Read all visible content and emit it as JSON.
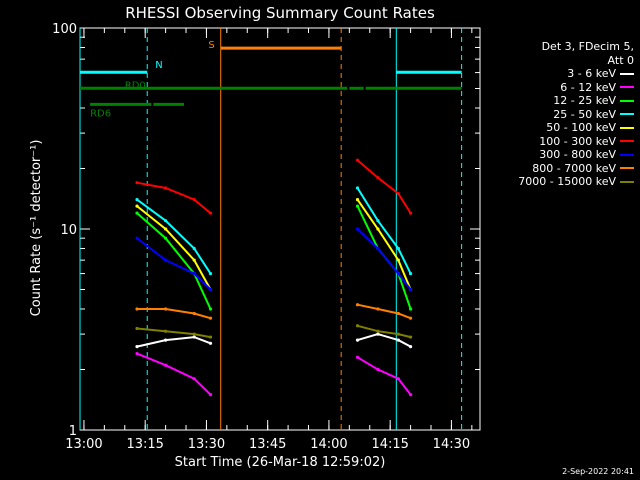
{
  "chart_data": {
    "type": "line",
    "title": "RHESSI Observing Summary Count Rates",
    "xlabel": "Start Time (26-Mar-18 12:59:02)",
    "ylabel": "Count Rate (s⁻¹ detector⁻¹)",
    "y_scale": "log",
    "ylim": [
      1,
      100
    ],
    "xlim": [
      "12:59:02",
      "14:37:00"
    ],
    "y_ticks": [
      "1",
      "10",
      "100"
    ],
    "x_ticks": [
      "13:00",
      "13:15",
      "13:30",
      "13:45",
      "14:00",
      "14:15",
      "14:30"
    ],
    "legend_title": [
      "Det 3, FDecim 5,",
      "Att 0"
    ],
    "legend_position": "right",
    "series": [
      {
        "name": "3 - 6 keV",
        "color": "#ffffff",
        "segments": [
          [
            [
              "13:13",
              2.6
            ],
            [
              "13:20",
              2.8
            ],
            [
              "13:27",
              2.9
            ],
            [
              "13:31",
              2.7
            ]
          ],
          [
            [
              "14:07",
              2.8
            ],
            [
              "14:12",
              3.0
            ],
            [
              "14:17",
              2.8
            ],
            [
              "14:20",
              2.6
            ]
          ]
        ]
      },
      {
        "name": "6 - 12 keV",
        "color": "#ff00ff",
        "segments": [
          [
            [
              "13:13",
              2.4
            ],
            [
              "13:20",
              2.1
            ],
            [
              "13:27",
              1.8
            ],
            [
              "13:31",
              1.5
            ]
          ],
          [
            [
              "14:07",
              2.3
            ],
            [
              "14:12",
              2.0
            ],
            [
              "14:17",
              1.8
            ],
            [
              "14:20",
              1.5
            ]
          ]
        ]
      },
      {
        "name": "12 - 25 keV",
        "color": "#00ff00",
        "segments": [
          [
            [
              "13:13",
              12
            ],
            [
              "13:20",
              9
            ],
            [
              "13:27",
              6
            ],
            [
              "13:31",
              4
            ]
          ],
          [
            [
              "14:07",
              13
            ],
            [
              "14:12",
              8
            ],
            [
              "14:17",
              6
            ],
            [
              "14:20",
              4
            ]
          ]
        ]
      },
      {
        "name": "25 - 50 keV",
        "color": "#00ffff",
        "segments": [
          [
            [
              "13:13",
              14
            ],
            [
              "13:20",
              11
            ],
            [
              "13:27",
              8
            ],
            [
              "13:31",
              6
            ]
          ],
          [
            [
              "14:07",
              16
            ],
            [
              "14:12",
              11
            ],
            [
              "14:17",
              8
            ],
            [
              "14:20",
              6
            ]
          ]
        ]
      },
      {
        "name": "50 - 100 keV",
        "color": "#ffff00",
        "segments": [
          [
            [
              "13:13",
              13
            ],
            [
              "13:20",
              10
            ],
            [
              "13:27",
              7
            ],
            [
              "13:31",
              5
            ]
          ],
          [
            [
              "14:07",
              14
            ],
            [
              "14:12",
              10
            ],
            [
              "14:17",
              7
            ],
            [
              "14:20",
              5
            ]
          ]
        ]
      },
      {
        "name": "100 - 300 keV",
        "color": "#ff0000",
        "segments": [
          [
            [
              "13:13",
              17
            ],
            [
              "13:20",
              16
            ],
            [
              "13:27",
              14
            ],
            [
              "13:31",
              12
            ]
          ],
          [
            [
              "14:07",
              22
            ],
            [
              "14:12",
              18
            ],
            [
              "14:17",
              15
            ],
            [
              "14:20",
              12
            ]
          ]
        ]
      },
      {
        "name": "300 - 800 keV",
        "color": "#0000ff",
        "segments": [
          [
            [
              "13:13",
              9
            ],
            [
              "13:20",
              7
            ],
            [
              "13:27",
              6
            ],
            [
              "13:31",
              5
            ]
          ],
          [
            [
              "14:07",
              10
            ],
            [
              "14:12",
              8
            ],
            [
              "14:17",
              6
            ],
            [
              "14:20",
              5
            ]
          ]
        ]
      },
      {
        "name": "800 - 7000 keV",
        "color": "#ff8000",
        "segments": [
          [
            [
              "13:13",
              4.0
            ],
            [
              "13:20",
              4.0
            ],
            [
              "13:27",
              3.8
            ],
            [
              "13:31",
              3.6
            ]
          ],
          [
            [
              "14:07",
              4.2
            ],
            [
              "14:12",
              4.0
            ],
            [
              "14:17",
              3.8
            ],
            [
              "14:20",
              3.6
            ]
          ]
        ]
      },
      {
        "name": "7000 - 15000 keV",
        "color": "#808000",
        "segments": [
          [
            [
              "13:13",
              3.2
            ],
            [
              "13:20",
              3.1
            ],
            [
              "13:27",
              3.0
            ],
            [
              "13:31",
              2.9
            ]
          ],
          [
            [
              "14:07",
              3.3
            ],
            [
              "14:12",
              3.1
            ],
            [
              "14:17",
              3.0
            ],
            [
              "14:20",
              2.9
            ]
          ]
        ]
      }
    ],
    "annotations": [
      {
        "label": "N",
        "color": "#00ffff",
        "style": "solid",
        "level": 0.9,
        "ranges": [
          [
            "12:59:02",
            "13:15:30"
          ],
          [
            "14:16:30",
            "14:32:30"
          ]
        ]
      },
      {
        "label": "S",
        "color": "#ff8000",
        "style": "solid",
        "level": 0.96,
        "ranges": [
          [
            "13:33:30",
            "14:03:00"
          ]
        ]
      },
      {
        "label": "RD0",
        "color": "#008000",
        "style": "solid",
        "level": 0.86,
        "ranges": [
          [
            "12:59:02",
            "14:04:30"
          ],
          [
            "14:05:00",
            "14:08:30"
          ],
          [
            "14:09:00",
            "14:32:30"
          ]
        ]
      },
      {
        "label": "RD6",
        "color": "#008000",
        "style": "solid",
        "level": 0.82,
        "ranges": [
          [
            "13:01:30",
            "13:16:30"
          ],
          [
            "13:17:00",
            "13:24:30"
          ]
        ]
      }
    ],
    "vertical_lines": [
      {
        "time": "12:59:02",
        "color": "#00ffff",
        "dashed": false
      },
      {
        "time": "13:15:30",
        "color": "#00ffff",
        "dashed": true
      },
      {
        "time": "13:33:30",
        "color": "#ff8000",
        "dashed": false
      },
      {
        "time": "14:03:00",
        "color": "#ff8000",
        "dashed": true
      },
      {
        "time": "14:16:30",
        "color": "#00ffff",
        "dashed": false
      },
      {
        "time": "14:32:30",
        "color": "#00ffff",
        "dashed": true
      }
    ]
  },
  "timestamp": "2-Sep-2022 20:41"
}
